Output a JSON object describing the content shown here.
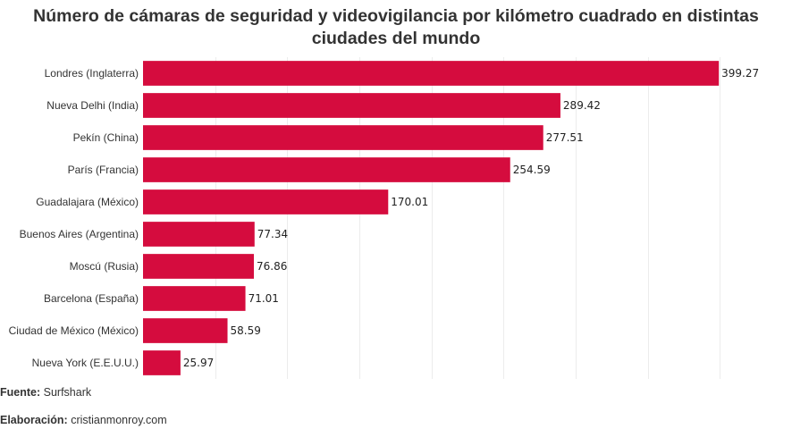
{
  "chart_data": {
    "type": "bar",
    "orientation": "horizontal",
    "title": "Número de cámaras de seguridad y videovigilancia por kilómetro cuadrado en distintas ciudades del mundo",
    "categories": [
      "Londres (Inglaterra)",
      "Nueva Delhi (India)",
      "Pekín (China)",
      "París (Francia)",
      "Guadalajara (México)",
      "Buenos Aires (Argentina)",
      "Moscú (Rusia)",
      "Barcelona (España)",
      "Ciudad de México (México)",
      "Nueva York (E.E.U.U.)"
    ],
    "values": [
      399.27,
      289.42,
      277.51,
      254.59,
      170.01,
      77.34,
      76.86,
      71.01,
      58.59,
      25.97
    ],
    "value_labels": [
      "399.27",
      "289.42",
      "277.51",
      "254.59",
      "170.01",
      "77.34",
      "76.86",
      "71.01",
      "58.59",
      "25.97"
    ],
    "xlim": [
      0,
      450
    ],
    "grid": true,
    "bar_color": "#d50c3e"
  },
  "footer": {
    "source_label": "Fuente:",
    "source_value": "Surfshark",
    "credit_label": "Elaboración:",
    "credit_value": "cristianmonroy.com"
  }
}
